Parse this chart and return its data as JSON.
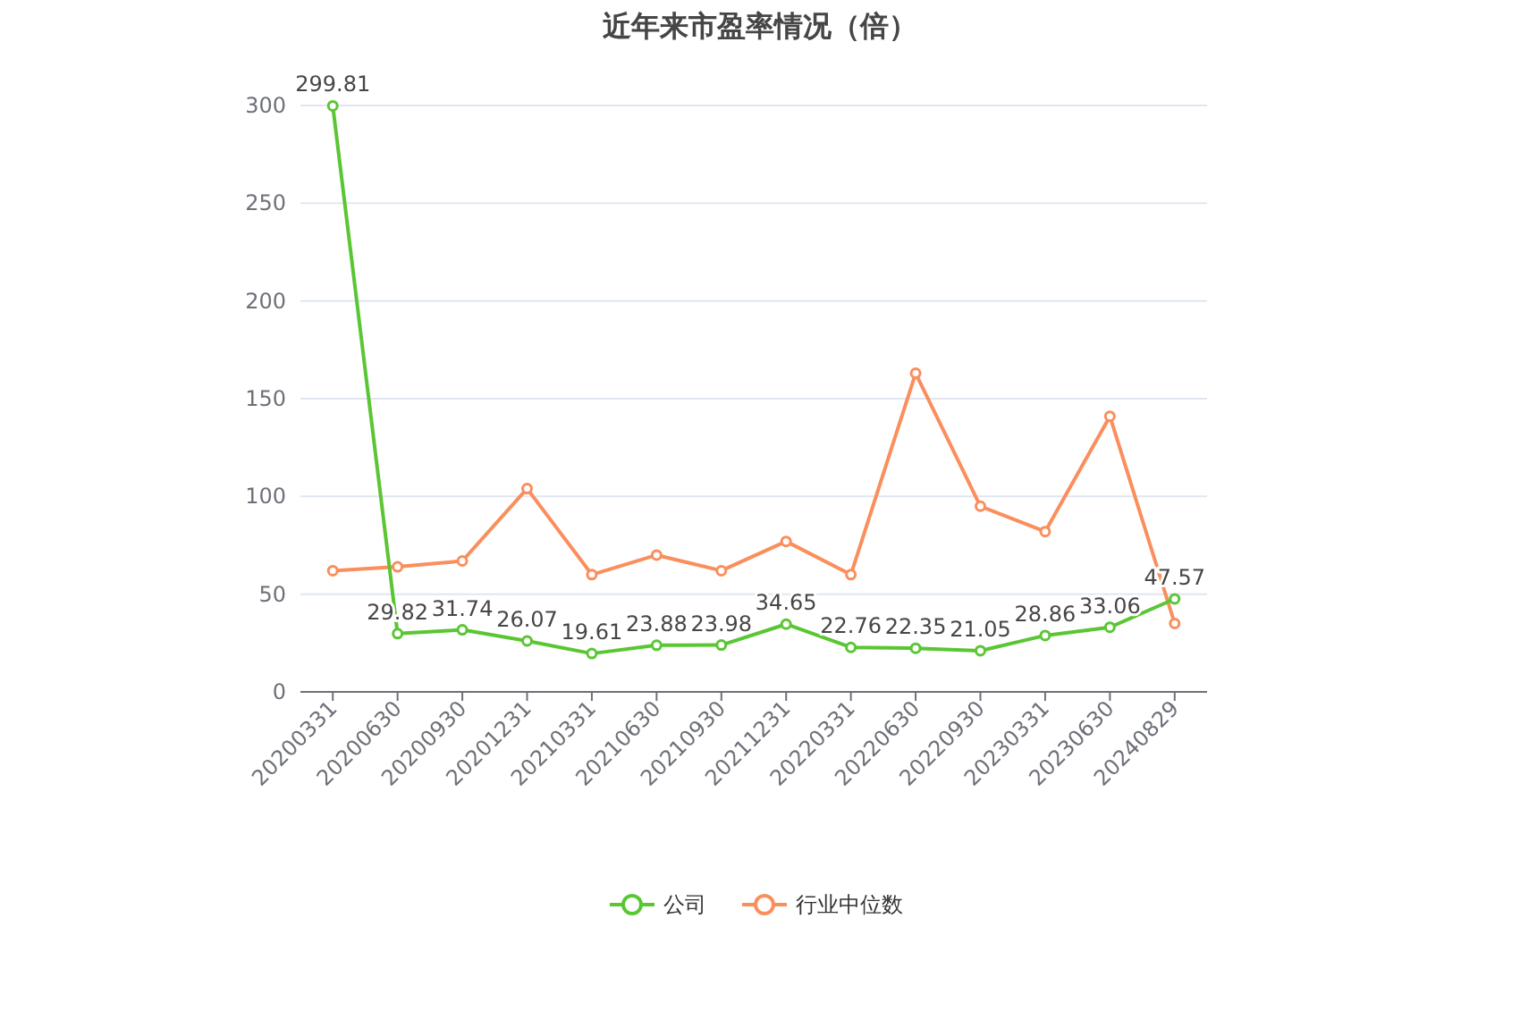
{
  "chart_data": {
    "type": "line",
    "title": "近年来市盈率情况（倍）",
    "categories": [
      "20200331",
      "20200630",
      "20200930",
      "20201231",
      "20210331",
      "20210630",
      "20210930",
      "20211231",
      "20220331",
      "20220630",
      "20220930",
      "20230331",
      "20230630",
      "20240829"
    ],
    "series": [
      {
        "name": "公司",
        "color": "#5ac633",
        "values": [
          299.81,
          29.82,
          31.74,
          26.07,
          19.61,
          23.88,
          23.98,
          34.65,
          22.76,
          22.35,
          21.05,
          28.86,
          33.06,
          47.57
        ],
        "value_labels": [
          "299.81",
          "29.82",
          "31.74",
          "26.07",
          "19.61",
          "23.88",
          "23.98",
          "34.65",
          "22.76",
          "22.35",
          "21.05",
          "28.86",
          "33.06",
          "47.57"
        ]
      },
      {
        "name": "行业中位数",
        "color": "#fa8e5c",
        "values": [
          62,
          64,
          67,
          104,
          60,
          70,
          62,
          77,
          60,
          163,
          95,
          82,
          141,
          35
        ]
      }
    ],
    "ylim": [
      0,
      300
    ],
    "yticks": [
      0,
      50,
      100,
      150,
      200,
      250,
      300
    ],
    "grid": "y",
    "legend": "bottom",
    "marker": "circle",
    "line_style": "solid"
  }
}
